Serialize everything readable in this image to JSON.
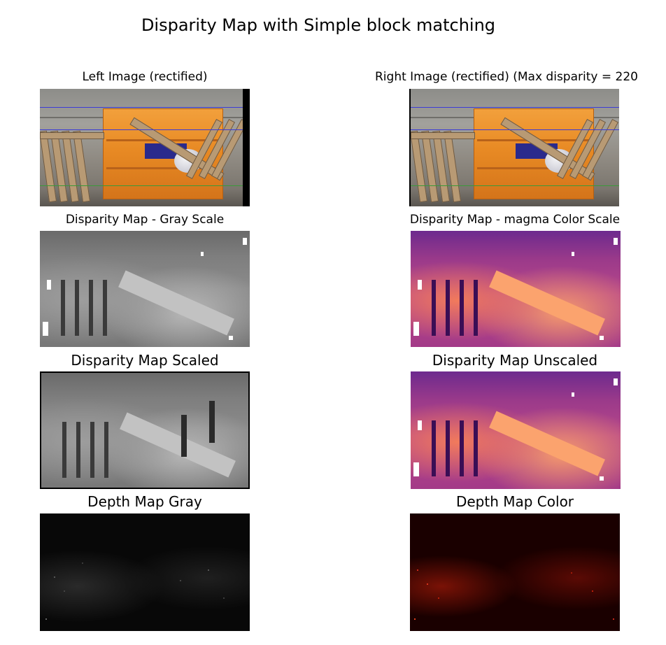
{
  "figure": {
    "title": "Disparity Map with Simple block matching"
  },
  "panels": {
    "left_image": {
      "title": "Left Image (rectified)"
    },
    "right_image": {
      "title": "Right Image (rectified) (Max disparity = 220"
    },
    "disparity_gray": {
      "title": "Disparity Map - Gray Scale"
    },
    "disparity_color": {
      "title": "Disparity Map - magma Color Scale"
    },
    "disparity_scaled": {
      "title": "Disparity Map Scaled"
    },
    "disparity_unscaled": {
      "title": "Disparity Map Unscaled"
    },
    "depth_gray": {
      "title": "Depth Map Gray"
    },
    "depth_color": {
      "title": "Depth Map Color"
    }
  },
  "colors": {
    "cabinet": "#e88a24",
    "epipolar_blue": "#3b3bd6",
    "epipolar_green": "#3a9a3a",
    "magma_low": "#3a0e55",
    "magma_high": "#fba36e",
    "depth_hot": "#b81e08"
  }
}
